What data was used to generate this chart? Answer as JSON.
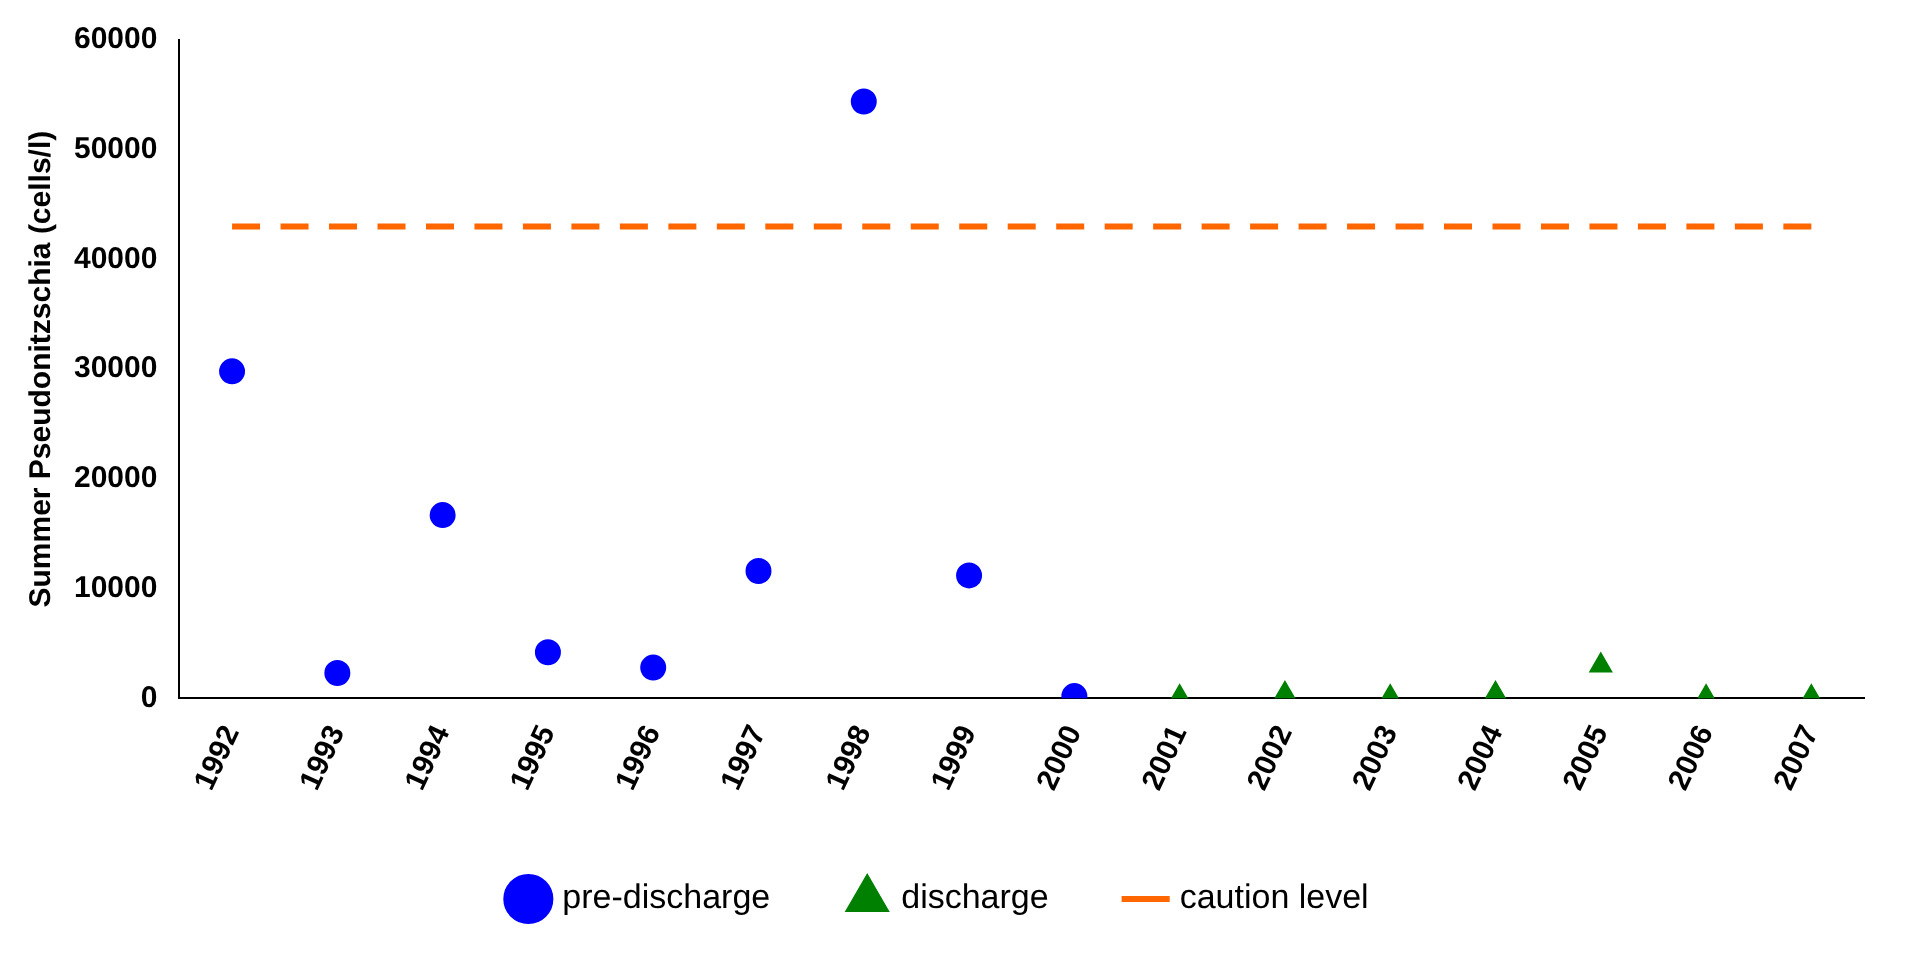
{
  "chart_data": {
    "type": "scatter",
    "ylabel": "Summer Pseudonitzschia (cells/l)",
    "categories": [
      "1992",
      "1993",
      "1994",
      "1995",
      "1996",
      "1997",
      "1998",
      "1999",
      "2000",
      "2001",
      "2002",
      "2003",
      "2004",
      "2005",
      "2006",
      "2007"
    ],
    "series": [
      {
        "name": "pre-discharge",
        "marker": "circle",
        "color": "#0000ff",
        "values": [
          29800,
          2300,
          16700,
          4200,
          2800,
          11600,
          54400,
          11200,
          200,
          null,
          null,
          null,
          null,
          null,
          null,
          null
        ]
      },
      {
        "name": "discharge",
        "marker": "triangle",
        "color": "#008000",
        "values": [
          null,
          null,
          null,
          null,
          null,
          null,
          null,
          null,
          null,
          100,
          400,
          100,
          400,
          3000,
          100,
          100
        ]
      },
      {
        "name": "caution level",
        "type": "line",
        "marker": "none",
        "line_style": "dashed",
        "color": "#ff6600",
        "values": [
          43000,
          43000,
          43000,
          43000,
          43000,
          43000,
          43000,
          43000,
          43000,
          43000,
          43000,
          43000,
          43000,
          43000,
          43000,
          43000
        ]
      }
    ],
    "ylim": [
      0,
      60000
    ],
    "yticks": [
      0,
      10000,
      20000,
      30000,
      40000,
      50000,
      60000
    ],
    "grid": false,
    "legend": "bottom"
  }
}
